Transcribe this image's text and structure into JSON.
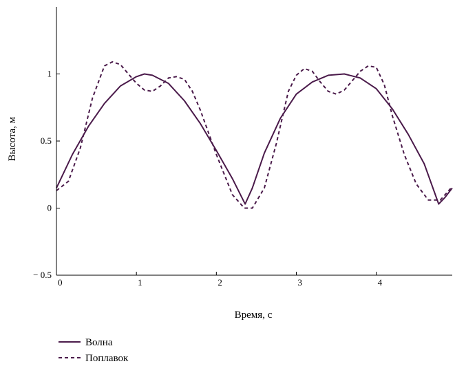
{
  "chart_data": {
    "type": "line",
    "xlabel": "Время, с",
    "ylabel": "Высота, м",
    "xlim": [
      0,
      4.95
    ],
    "ylim": [
      -0.5,
      1.5
    ],
    "xticks": [
      0,
      1,
      2,
      3,
      4
    ],
    "yticks": [
      -0.5,
      0,
      0.5,
      1
    ],
    "xtick_labels": [
      "0",
      "1",
      "2",
      "3",
      "4"
    ],
    "ytick_labels": [
      "− 0.5",
      "0",
      "0.5",
      "1"
    ],
    "grid": false,
    "legend_position": "bottom-left",
    "colors": {
      "series": "#4a1a4a",
      "axis": "#000000"
    },
    "series": [
      {
        "name": "Волна",
        "style": "solid",
        "x": [
          0,
          0.2,
          0.4,
          0.6,
          0.8,
          1.0,
          1.1,
          1.2,
          1.4,
          1.6,
          1.8,
          2.0,
          2.2,
          2.36,
          2.45,
          2.6,
          2.8,
          3.0,
          3.2,
          3.4,
          3.6,
          3.8,
          4.0,
          4.2,
          4.4,
          4.6,
          4.78,
          4.86,
          4.95
        ],
        "y": [
          0.15,
          0.4,
          0.61,
          0.78,
          0.91,
          0.98,
          1.0,
          0.99,
          0.93,
          0.8,
          0.63,
          0.43,
          0.22,
          0.03,
          0.15,
          0.41,
          0.67,
          0.85,
          0.94,
          0.99,
          1.0,
          0.97,
          0.89,
          0.74,
          0.55,
          0.33,
          0.03,
          0.08,
          0.15
        ]
      },
      {
        "name": "Поплавок",
        "style": "dashed",
        "x": [
          0,
          0.15,
          0.3,
          0.45,
          0.6,
          0.7,
          0.8,
          0.9,
          1.0,
          1.1,
          1.2,
          1.3,
          1.4,
          1.5,
          1.6,
          1.7,
          1.8,
          2.0,
          2.2,
          2.35,
          2.45,
          2.6,
          2.75,
          2.9,
          3.0,
          3.1,
          3.2,
          3.3,
          3.4,
          3.5,
          3.6,
          3.7,
          3.8,
          3.9,
          4.0,
          4.1,
          4.2,
          4.35,
          4.5,
          4.65,
          4.8,
          4.95
        ],
        "y": [
          0.13,
          0.2,
          0.45,
          0.82,
          1.06,
          1.09,
          1.07,
          1.0,
          0.93,
          0.88,
          0.87,
          0.91,
          0.97,
          0.98,
          0.96,
          0.87,
          0.73,
          0.4,
          0.1,
          0.0,
          0.0,
          0.15,
          0.48,
          0.87,
          0.99,
          1.04,
          1.02,
          0.94,
          0.87,
          0.85,
          0.88,
          0.95,
          1.02,
          1.06,
          1.05,
          0.92,
          0.69,
          0.4,
          0.18,
          0.06,
          0.06,
          0.16
        ]
      }
    ]
  }
}
